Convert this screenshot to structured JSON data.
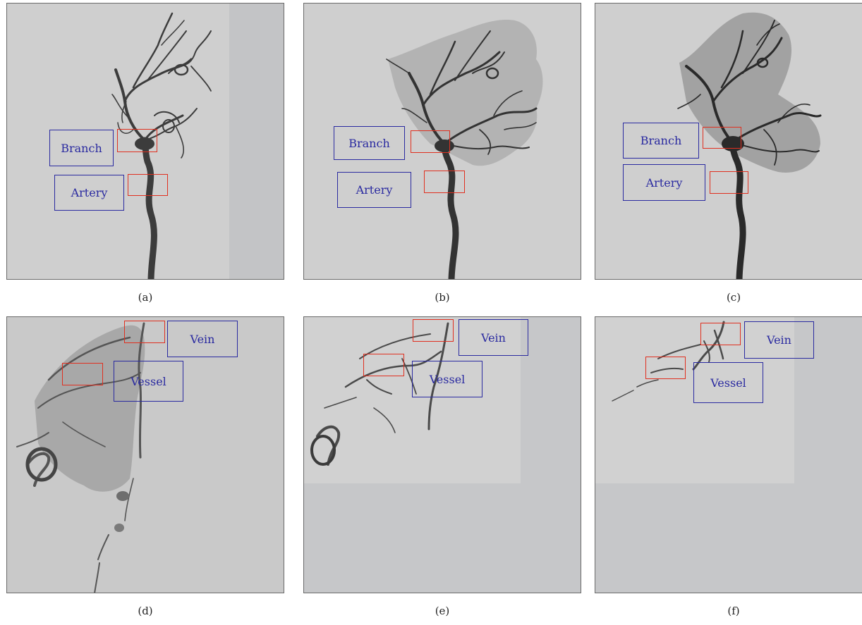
{
  "panels": [
    {
      "id": "a",
      "caption": "(a)",
      "labels": [
        "Branch",
        "Artery"
      ]
    },
    {
      "id": "b",
      "caption": "(b)",
      "labels": [
        "Branch",
        "Artery"
      ]
    },
    {
      "id": "c",
      "caption": "(c)",
      "labels": [
        "Branch",
        "Artery"
      ]
    },
    {
      "id": "d",
      "caption": "(d)",
      "labels": [
        "Vein",
        "Vessel"
      ]
    },
    {
      "id": "e",
      "caption": "(e)",
      "labels": [
        "Vein",
        "Vessel"
      ]
    },
    {
      "id": "f",
      "caption": "(f)",
      "labels": [
        "Vein",
        "Vessel"
      ]
    }
  ],
  "colors": {
    "annotation_box": "#2a2aa0",
    "roi_box": "#e03020",
    "background": "#cfcfcf",
    "vessel": "#3a3a3a"
  }
}
